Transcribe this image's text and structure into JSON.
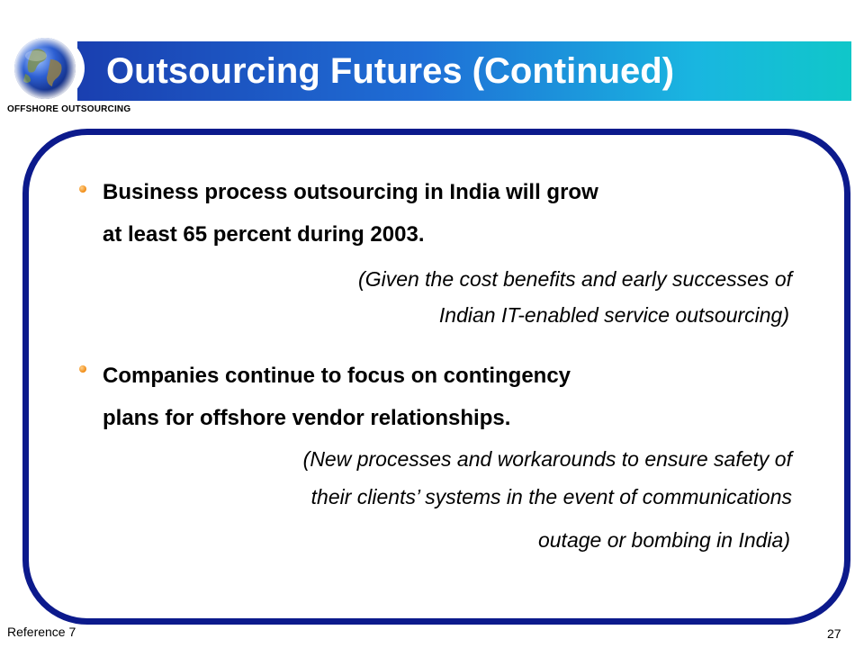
{
  "header": {
    "title": "Outsourcing Futures (Continued)",
    "logo_caption": "OFFSHORE OUTSOURCING"
  },
  "bullets": [
    {
      "line1": "Business process outsourcing in India will grow",
      "line2": "at least 65 percent during 2003.",
      "note_lines": [
        "(Given the cost benefits and early successes of",
        "Indian IT-enabled service outsourcing)"
      ]
    },
    {
      "line1": "Companies continue to focus on contingency",
      "line2": "plans for offshore vendor relationships.",
      "note_lines": [
        "(New processes and workarounds to ensure safety of",
        "their clients’ systems in the event of communications",
        "outage or bombing in India)"
      ]
    }
  ],
  "footer": {
    "reference": "Reference 7",
    "page_number": "27"
  },
  "colors": {
    "frame_border": "#0c1a8c",
    "bullet": "#f08a12",
    "title_gradient_start": "#1a3fb0",
    "title_gradient_end": "#10c7c9"
  }
}
